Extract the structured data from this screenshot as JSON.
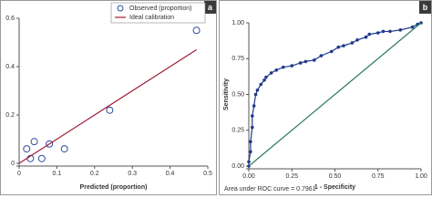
{
  "chart_data": [
    {
      "type": "scatter",
      "panel_label": "a",
      "x_label": "Predicted (proportion)",
      "xlim": [
        0,
        0.5
      ],
      "xticks": [
        0,
        0.1,
        0.2,
        0.3,
        0.4,
        0.5
      ],
      "ylim": [
        0,
        0.6
      ],
      "yticks": [
        0,
        0.2,
        0.4,
        0.6
      ],
      "legend": "top-right",
      "series": [
        {
          "name": "Observed (proportion)",
          "color": "#2e4a9e",
          "mode": "markers",
          "x": [
            0.02,
            0.03,
            0.04,
            0.06,
            0.08,
            0.12,
            0.24,
            0.47
          ],
          "values": [
            0.06,
            0.02,
            0.09,
            0.02,
            0.08,
            0.06,
            0.22,
            0.55
          ]
        },
        {
          "name": "Ideal calibration",
          "color": "#a0203a",
          "mode": "line",
          "x": [
            0,
            0.47
          ],
          "values": [
            0,
            0.47
          ]
        }
      ]
    },
    {
      "type": "line",
      "panel_label": "b",
      "x_label": "1 - Specificity",
      "y_label": "Sensitivity",
      "annotation": "Area under ROC curve = 0.7961",
      "xlim": [
        0,
        1
      ],
      "xticks": [
        {
          "value": 0,
          "label": "0.00"
        },
        {
          "value": 0.25,
          "label": "0.25"
        },
        {
          "value": 0.5,
          "label": "0.50"
        },
        {
          "value": 0.75,
          "label": "0.75"
        },
        {
          "value": 1,
          "label": "1.00"
        }
      ],
      "ylim": [
        0,
        1
      ],
      "yticks": [
        {
          "value": 0,
          "label": "0.00"
        },
        {
          "value": 0.25,
          "label": "0.25"
        },
        {
          "value": 0.5,
          "label": "0.50"
        },
        {
          "value": 0.75,
          "label": "0.75"
        },
        {
          "value": 1,
          "label": "1.00"
        }
      ],
      "series": [
        {
          "color": "#1f3a8a",
          "markers": true,
          "x": [
            0,
            0,
            0.01,
            0.01,
            0.02,
            0.02,
            0.03,
            0.04,
            0.05,
            0.07,
            0.09,
            0.1,
            0.13,
            0.16,
            0.2,
            0.25,
            0.3,
            0.33,
            0.38,
            0.42,
            0.48,
            0.52,
            0.55,
            0.6,
            0.63,
            0.68,
            0.7,
            0.75,
            0.78,
            0.82,
            0.88,
            0.95,
            0.98,
            1
          ],
          "values": [
            0,
            0.03,
            0.1,
            0.17,
            0.27,
            0.35,
            0.42,
            0.5,
            0.53,
            0.57,
            0.6,
            0.62,
            0.65,
            0.67,
            0.69,
            0.7,
            0.72,
            0.73,
            0.74,
            0.77,
            0.8,
            0.83,
            0.84,
            0.86,
            0.88,
            0.9,
            0.92,
            0.93,
            0.94,
            0.94,
            0.95,
            0.97,
            0.99,
            1
          ]
        },
        {
          "color": "#2e7d5b",
          "markers": false,
          "x": [
            0,
            1
          ],
          "values": [
            0,
            1
          ]
        }
      ]
    }
  ]
}
